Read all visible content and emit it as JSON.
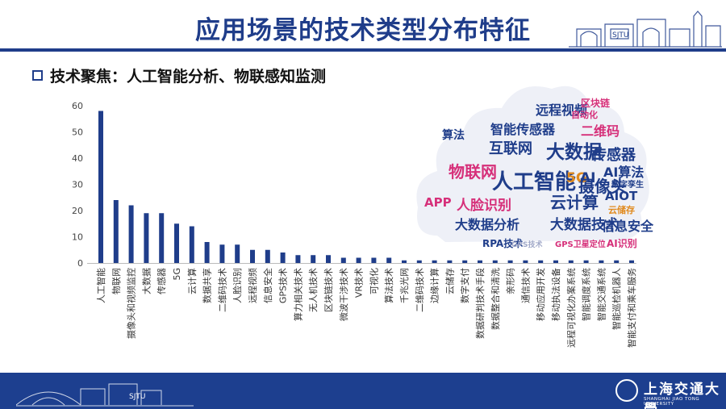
{
  "title": "应用场景的技术类型分布特征",
  "subtitle": "技术聚焦：人工智能分析、物联感知监测",
  "chart_data": {
    "type": "bar",
    "categories": [
      "人工智能",
      "物联网",
      "摄像头和视频监控",
      "大数据",
      "传感器",
      "5G",
      "云计算",
      "数据共享",
      "二维码技术",
      "人脸识别",
      "远程视频",
      "信息安全",
      "GPS技术",
      "算力相关技术",
      "无人机技术",
      "区块链技术",
      "微波干涉技术",
      "VR技术",
      "可视化",
      "算法技术",
      "千兆光网",
      "二维码技术",
      "边缘计算",
      "云储存",
      "数字支付",
      "数据研判技术手段",
      "数据整合和清洗",
      "亲形码",
      "通信技术",
      "移动应用开发",
      "移动执法设备",
      "远程可视化办案系统",
      "智能调度系统",
      "智能交通系统",
      "智能巡检机器人",
      "智能支付和乘车服务"
    ],
    "values": [
      58,
      24,
      22,
      19,
      19,
      15,
      14,
      8,
      7,
      7,
      5,
      5,
      4,
      3,
      3,
      3,
      2,
      2,
      2,
      2,
      1,
      1,
      1,
      1,
      1,
      1,
      1,
      1,
      1,
      1,
      1,
      1,
      1,
      1,
      1,
      1
    ],
    "ylim": [
      0,
      60
    ],
    "yticks": [
      0,
      10,
      20,
      30,
      40,
      50,
      60
    ],
    "bar_color": "#1f3d8a",
    "grid": false
  },
  "word_cloud": [
    {
      "text": "人工智能",
      "color": "#1f3d8a"
    },
    {
      "text": "大数据",
      "color": "#1f3d8a"
    },
    {
      "text": "物联网",
      "color": "#d6307a"
    },
    {
      "text": "云计算",
      "color": "#1f3d8a"
    },
    {
      "text": "摄像头",
      "color": "#1f3d8a"
    },
    {
      "text": "互联网",
      "color": "#1f3d8a"
    },
    {
      "text": "传感器",
      "color": "#1f3d8a"
    },
    {
      "text": "5G",
      "color": "#e08a1e"
    },
    {
      "text": "AI",
      "color": "#1f3d8a"
    },
    {
      "text": "人脸识别",
      "color": "#d6307a"
    },
    {
      "text": "大数据技术",
      "color": "#1f3d8a"
    },
    {
      "text": "大数据分析",
      "color": "#1f3d8a"
    },
    {
      "text": "信息安全",
      "color": "#1f3d8a"
    },
    {
      "text": "智能传感器",
      "color": "#1f3d8a"
    },
    {
      "text": "二维码",
      "color": "#d6307a"
    },
    {
      "text": "算法",
      "color": "#1f3d8a"
    },
    {
      "text": "远程视频",
      "color": "#1f3d8a"
    },
    {
      "text": "AI算法",
      "color": "#1f3d8a"
    },
    {
      "text": "AIOT",
      "color": "#1f3d8a"
    },
    {
      "text": "APP",
      "color": "#d6307a"
    },
    {
      "text": "RPA技术",
      "color": "#1f3d8a"
    },
    {
      "text": "AI识别",
      "color": "#d6307a"
    },
    {
      "text": "自动化",
      "color": "#d6307a"
    },
    {
      "text": "区块链",
      "color": "#d6307a"
    },
    {
      "text": "云储存",
      "color": "#e08a1e"
    },
    {
      "text": "数字孪生",
      "color": "#1f3d8a"
    },
    {
      "text": "GPS技术",
      "color": "#a0a8c8"
    },
    {
      "text": "GPS卫星定位",
      "color": "#d6307a"
    }
  ],
  "footer": {
    "logo_name": "上海交通大學",
    "logo_sub": "SHANGHAI JIAO TONG UNIVERSITY",
    "gate_label": "SJTU"
  },
  "colors": {
    "brand": "#1f3d8a",
    "footer": "#1d3f8f"
  }
}
